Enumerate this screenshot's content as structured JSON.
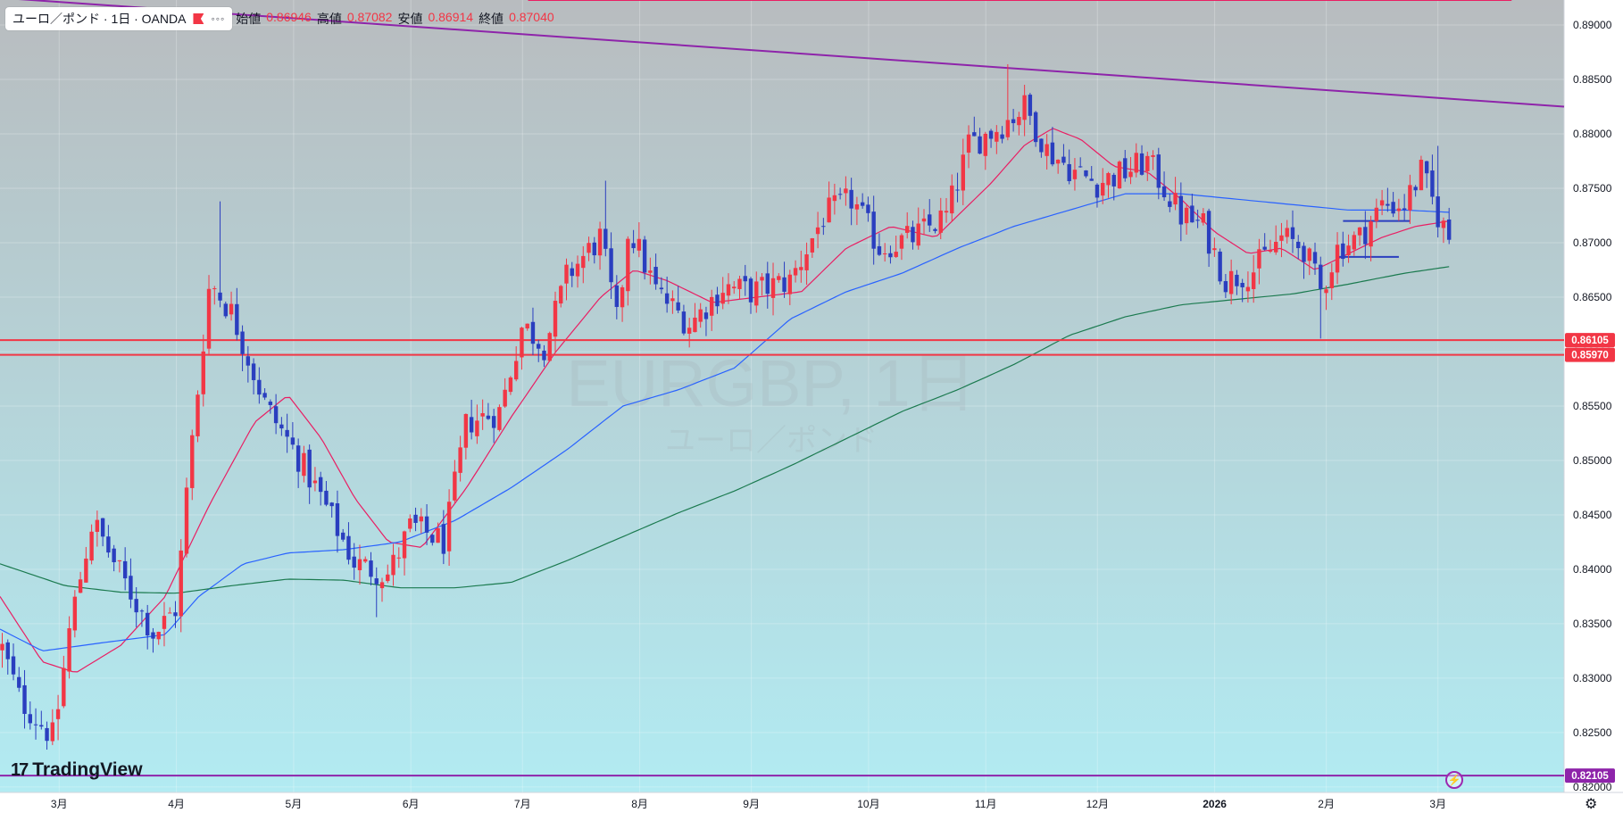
{
  "legend": {
    "symbol": "ユーロ／ポンド · 1日 · OANDA",
    "more": "◦◦◦",
    "open_label": "始値",
    "open": "0.86946",
    "high_label": "高値",
    "high": "0.87082",
    "low_label": "安値",
    "low": "0.86914",
    "close_label": "終値",
    "close": "0.87040"
  },
  "watermark": {
    "symbol": "EURGBP, 1日",
    "name": "ユーロ／ポンド"
  },
  "brand": {
    "mark": "17",
    "name": "TradingView"
  },
  "icons": {
    "flash": "lightning-icon",
    "settings": "gear-icon"
  },
  "colors": {
    "up": "#f23645",
    "down": "#2a3ebf",
    "sma_fast": "#e91e63",
    "sma_mid": "#2962ff",
    "sma_slow": "#1b7a4f",
    "resistance": "#e91e63",
    "support": "#f23645",
    "trendline": "#8e24aa",
    "purple_level": "#8e24aa",
    "bg_top": "#b8bcbf",
    "bg_bottom": "#b2ebf2"
  },
  "chart_data": {
    "type": "candlestick",
    "title": "EURGBP, 1日",
    "symbol": "ユーロ／ポンド",
    "timeframe": "1日",
    "exchange": "OANDA",
    "price_axis": [
      "0.89000",
      "0.88500",
      "0.88000",
      "0.87500",
      "0.87000",
      "0.86500",
      "0.86000",
      "0.85500",
      "0.85000",
      "0.84500",
      "0.84000",
      "0.83500",
      "0.83000",
      "0.82500",
      "0.82000"
    ],
    "ylim": [
      0.8195,
      0.8923
    ],
    "time_axis": [
      {
        "label": "3月",
        "t": 0.95
      },
      {
        "label": "4月",
        "t": 2.0
      },
      {
        "label": "5月",
        "t": 3.05
      },
      {
        "label": "6月",
        "t": 4.1
      },
      {
        "label": "7月",
        "t": 5.1
      },
      {
        "label": "8月",
        "t": 6.15
      },
      {
        "label": "9月",
        "t": 7.15
      },
      {
        "label": "10月",
        "t": 8.2
      },
      {
        "label": "11月",
        "t": 9.25
      },
      {
        "label": "12月",
        "t": 10.25
      },
      {
        "label": "2026",
        "t": 11.3
      },
      {
        "label": "2月",
        "t": 12.3
      },
      {
        "label": "3月",
        "t": 13.3
      }
    ],
    "xlim": [
      0.42,
      14.43
    ],
    "price_labels": [
      {
        "value": 0.86105,
        "text": "0.86105",
        "color": "#f23645"
      },
      {
        "value": 0.8597,
        "text": "0.85970",
        "color": "#f23645"
      },
      {
        "value": 0.82105,
        "text": "0.82105",
        "color": "#8e24aa"
      }
    ],
    "ohlc_anchors": [
      {
        "t": 0.42,
        "p": 0.8333
      },
      {
        "t": 0.6,
        "p": 0.828
      },
      {
        "t": 0.9,
        "p": 0.8245
      },
      {
        "t": 1.05,
        "p": 0.835
      },
      {
        "t": 1.25,
        "p": 0.8445
      },
      {
        "t": 1.5,
        "p": 0.8395
      },
      {
        "t": 1.8,
        "p": 0.834
      },
      {
        "t": 2.0,
        "p": 0.8365
      },
      {
        "t": 2.1,
        "p": 0.848
      },
      {
        "t": 2.3,
        "p": 0.8665
      },
      {
        "t": 2.5,
        "p": 0.8635
      },
      {
        "t": 2.8,
        "p": 0.855
      },
      {
        "t": 3.05,
        "p": 0.851
      },
      {
        "t": 3.3,
        "p": 0.8465
      },
      {
        "t": 3.6,
        "p": 0.8405
      },
      {
        "t": 3.9,
        "p": 0.8395
      },
      {
        "t": 4.1,
        "p": 0.844
      },
      {
        "t": 4.4,
        "p": 0.8425
      },
      {
        "t": 4.6,
        "p": 0.8535
      },
      {
        "t": 4.9,
        "p": 0.8545
      },
      {
        "t": 5.1,
        "p": 0.8625
      },
      {
        "t": 5.3,
        "p": 0.8605
      },
      {
        "t": 5.5,
        "p": 0.867
      },
      {
        "t": 5.8,
        "p": 0.8705
      },
      {
        "t": 5.95,
        "p": 0.8625
      },
      {
        "t": 6.05,
        "p": 0.8715
      },
      {
        "t": 6.3,
        "p": 0.8655
      },
      {
        "t": 6.6,
        "p": 0.8625
      },
      {
        "t": 6.9,
        "p": 0.866
      },
      {
        "t": 7.15,
        "p": 0.8655
      },
      {
        "t": 7.5,
        "p": 0.8665
      },
      {
        "t": 7.8,
        "p": 0.8725
      },
      {
        "t": 8.05,
        "p": 0.874
      },
      {
        "t": 8.3,
        "p": 0.8695
      },
      {
        "t": 8.6,
        "p": 0.8705
      },
      {
        "t": 8.9,
        "p": 0.8725
      },
      {
        "t": 9.1,
        "p": 0.879
      },
      {
        "t": 9.35,
        "p": 0.8805
      },
      {
        "t": 9.6,
        "p": 0.8825
      },
      {
        "t": 9.8,
        "p": 0.8785
      },
      {
        "t": 10.05,
        "p": 0.8765
      },
      {
        "t": 10.25,
        "p": 0.8755
      },
      {
        "t": 10.5,
        "p": 0.8765
      },
      {
        "t": 10.7,
        "p": 0.8775
      },
      {
        "t": 11.0,
        "p": 0.8725
      },
      {
        "t": 11.2,
        "p": 0.8715
      },
      {
        "t": 11.4,
        "p": 0.8665
      },
      {
        "t": 11.65,
        "p": 0.8675
      },
      {
        "t": 11.9,
        "p": 0.8705
      },
      {
        "t": 12.1,
        "p": 0.8695
      },
      {
        "t": 12.25,
        "p": 0.8655
      },
      {
        "t": 12.4,
        "p": 0.8695
      },
      {
        "t": 12.6,
        "p": 0.8705
      },
      {
        "t": 12.8,
        "p": 0.8735
      },
      {
        "t": 13.0,
        "p": 0.8735
      },
      {
        "t": 13.15,
        "p": 0.8765
      },
      {
        "t": 13.3,
        "p": 0.8725
      },
      {
        "t": 13.4,
        "p": 0.8704
      }
    ],
    "extremes": [
      {
        "t": 0.93,
        "type": "low",
        "p": 0.8243
      },
      {
        "t": 2.38,
        "type": "high",
        "p": 0.8738
      },
      {
        "t": 3.78,
        "type": "low",
        "p": 0.8356
      },
      {
        "t": 5.85,
        "type": "high",
        "p": 0.8757
      },
      {
        "t": 9.45,
        "type": "high",
        "p": 0.8864
      },
      {
        "t": 12.25,
        "type": "low",
        "p": 0.8612
      },
      {
        "t": 13.28,
        "type": "high",
        "p": 0.8789
      }
    ],
    "sma_fast": [
      {
        "t": 0.42,
        "p": 0.8375
      },
      {
        "t": 0.8,
        "p": 0.8315
      },
      {
        "t": 1.1,
        "p": 0.8305
      },
      {
        "t": 1.5,
        "p": 0.833
      },
      {
        "t": 1.9,
        "p": 0.8375
      },
      {
        "t": 2.3,
        "p": 0.846
      },
      {
        "t": 2.7,
        "p": 0.8535
      },
      {
        "t": 3.0,
        "p": 0.856
      },
      {
        "t": 3.3,
        "p": 0.852
      },
      {
        "t": 3.6,
        "p": 0.8465
      },
      {
        "t": 3.9,
        "p": 0.8425
      },
      {
        "t": 4.2,
        "p": 0.842
      },
      {
        "t": 4.6,
        "p": 0.8475
      },
      {
        "t": 5.0,
        "p": 0.854
      },
      {
        "t": 5.4,
        "p": 0.86
      },
      {
        "t": 5.8,
        "p": 0.865
      },
      {
        "t": 6.1,
        "p": 0.8675
      },
      {
        "t": 6.4,
        "p": 0.8665
      },
      {
        "t": 6.8,
        "p": 0.8645
      },
      {
        "t": 7.2,
        "p": 0.865
      },
      {
        "t": 7.6,
        "p": 0.8655
      },
      {
        "t": 8.0,
        "p": 0.8695
      },
      {
        "t": 8.4,
        "p": 0.8715
      },
      {
        "t": 8.8,
        "p": 0.8705
      },
      {
        "t": 9.0,
        "p": 0.8725
      },
      {
        "t": 9.3,
        "p": 0.8755
      },
      {
        "t": 9.6,
        "p": 0.879
      },
      {
        "t": 9.85,
        "p": 0.8805
      },
      {
        "t": 10.1,
        "p": 0.8795
      },
      {
        "t": 10.4,
        "p": 0.877
      },
      {
        "t": 10.7,
        "p": 0.8765
      },
      {
        "t": 11.0,
        "p": 0.874
      },
      {
        "t": 11.3,
        "p": 0.871
      },
      {
        "t": 11.6,
        "p": 0.869
      },
      {
        "t": 11.9,
        "p": 0.8695
      },
      {
        "t": 12.2,
        "p": 0.8675
      },
      {
        "t": 12.5,
        "p": 0.869
      },
      {
        "t": 12.8,
        "p": 0.8705
      },
      {
        "t": 13.1,
        "p": 0.8715
      },
      {
        "t": 13.4,
        "p": 0.872
      }
    ],
    "sma_mid": [
      {
        "t": 0.42,
        "p": 0.8345
      },
      {
        "t": 0.8,
        "p": 0.8325
      },
      {
        "t": 1.3,
        "p": 0.8332
      },
      {
        "t": 1.9,
        "p": 0.834
      },
      {
        "t": 2.2,
        "p": 0.8375
      },
      {
        "t": 2.6,
        "p": 0.8405
      },
      {
        "t": 3.0,
        "p": 0.8415
      },
      {
        "t": 3.5,
        "p": 0.8418
      },
      {
        "t": 4.0,
        "p": 0.8425
      },
      {
        "t": 4.5,
        "p": 0.8445
      },
      {
        "t": 5.0,
        "p": 0.8475
      },
      {
        "t": 5.5,
        "p": 0.851
      },
      {
        "t": 6.0,
        "p": 0.855
      },
      {
        "t": 6.5,
        "p": 0.8565
      },
      {
        "t": 7.0,
        "p": 0.8585
      },
      {
        "t": 7.5,
        "p": 0.863
      },
      {
        "t": 8.0,
        "p": 0.8655
      },
      {
        "t": 8.5,
        "p": 0.8672
      },
      {
        "t": 9.0,
        "p": 0.8695
      },
      {
        "t": 9.5,
        "p": 0.8715
      },
      {
        "t": 10.0,
        "p": 0.873
      },
      {
        "t": 10.5,
        "p": 0.8745
      },
      {
        "t": 11.0,
        "p": 0.8745
      },
      {
        "t": 11.5,
        "p": 0.874
      },
      {
        "t": 12.0,
        "p": 0.8735
      },
      {
        "t": 12.5,
        "p": 0.873
      },
      {
        "t": 13.0,
        "p": 0.873
      },
      {
        "t": 13.4,
        "p": 0.8728
      }
    ],
    "sma_slow": [
      {
        "t": 0.42,
        "p": 0.8405
      },
      {
        "t": 1.0,
        "p": 0.8385
      },
      {
        "t": 1.5,
        "p": 0.8379
      },
      {
        "t": 2.0,
        "p": 0.8378
      },
      {
        "t": 2.5,
        "p": 0.8385
      },
      {
        "t": 3.0,
        "p": 0.8391
      },
      {
        "t": 3.5,
        "p": 0.839
      },
      {
        "t": 4.0,
        "p": 0.8383
      },
      {
        "t": 4.5,
        "p": 0.8383
      },
      {
        "t": 5.0,
        "p": 0.8388
      },
      {
        "t": 5.5,
        "p": 0.8408
      },
      {
        "t": 6.0,
        "p": 0.843
      },
      {
        "t": 6.5,
        "p": 0.8452
      },
      {
        "t": 7.0,
        "p": 0.8472
      },
      {
        "t": 7.5,
        "p": 0.8495
      },
      {
        "t": 8.0,
        "p": 0.852
      },
      {
        "t": 8.5,
        "p": 0.8545
      },
      {
        "t": 9.0,
        "p": 0.8565
      },
      {
        "t": 9.5,
        "p": 0.8588
      },
      {
        "t": 10.0,
        "p": 0.8615
      },
      {
        "t": 10.5,
        "p": 0.8632
      },
      {
        "t": 11.0,
        "p": 0.8643
      },
      {
        "t": 11.5,
        "p": 0.8648
      },
      {
        "t": 12.0,
        "p": 0.8653
      },
      {
        "t": 12.5,
        "p": 0.8662
      },
      {
        "t": 13.0,
        "p": 0.8672
      },
      {
        "t": 13.4,
        "p": 0.8678
      }
    ],
    "lines": [
      {
        "kind": "trendline",
        "t1": 0.42,
        "p1": 0.8925,
        "t2": 14.43,
        "p2": 0.8825
      },
      {
        "kind": "resistance",
        "t1": 5.15,
        "p1": 0.8755,
        "t2": 13.96,
        "p2": 0.8755
      },
      {
        "kind": "support",
        "t1": 0.42,
        "t2": 14.43,
        "p": 0.86105
      },
      {
        "kind": "support",
        "t1": 0.42,
        "t2": 14.43,
        "p": 0.8597
      },
      {
        "kind": "purple_level",
        "t1": 0.42,
        "t2": 14.43,
        "p": 0.82105
      },
      {
        "kind": "range_top",
        "t1": 12.45,
        "t2": 13.05,
        "p": 0.872
      },
      {
        "kind": "range_bottom",
        "t1": 12.4,
        "t2": 12.95,
        "p": 0.8687
      }
    ]
  }
}
